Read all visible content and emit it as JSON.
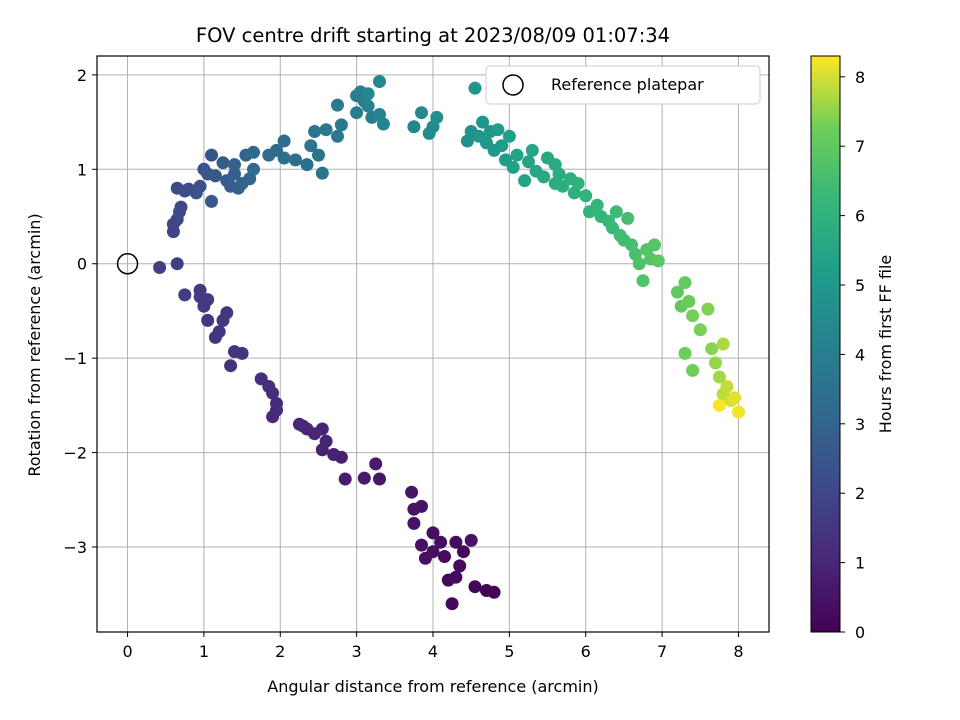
{
  "chart_data": {
    "type": "scatter",
    "title": "FOV centre drift starting at 2023/08/09 01:07:34",
    "xlabel": "Angular distance from reference (arcmin)",
    "ylabel": "Rotation from reference (arcmin)",
    "xlim": [
      -0.4,
      8.4
    ],
    "ylim": [
      -3.9,
      2.2
    ],
    "xticks": [
      0,
      1,
      2,
      3,
      4,
      5,
      6,
      7,
      8
    ],
    "yticks": [
      -3,
      -2,
      -1,
      0,
      1,
      2
    ],
    "xtick_labels": [
      "0",
      "1",
      "2",
      "3",
      "4",
      "5",
      "6",
      "7",
      "8"
    ],
    "ytick_labels": [
      "−3",
      "−2",
      "−1",
      "0",
      "1",
      "2"
    ],
    "grid": true,
    "legend": {
      "position": "top-right",
      "label": "Reference platepar",
      "marker": "open-circle"
    },
    "colorbar": {
      "label": "Hours from first FF file",
      "colormap": "viridis",
      "range": [
        0,
        8.3
      ],
      "ticks": [
        0,
        1,
        2,
        3,
        4,
        5,
        6,
        7,
        8
      ],
      "tick_labels": [
        "0",
        "1",
        "2",
        "3",
        "4",
        "5",
        "6",
        "7",
        "8"
      ]
    },
    "reference_point": {
      "x": 0,
      "y": 0
    },
    "points_xyt": [
      [
        4.8,
        -3.48,
        0.05
      ],
      [
        4.7,
        -3.46,
        0.08
      ],
      [
        4.55,
        -3.42,
        0.12
      ],
      [
        4.25,
        -3.6,
        0.15
      ],
      [
        4.3,
        -3.32,
        0.18
      ],
      [
        4.2,
        -3.35,
        0.2
      ],
      [
        4.35,
        -3.2,
        0.22
      ],
      [
        4.4,
        -3.05,
        0.25
      ],
      [
        4.15,
        -3.1,
        0.28
      ],
      [
        4.3,
        -2.95,
        0.3
      ],
      [
        4.1,
        -2.95,
        0.33
      ],
      [
        4.0,
        -2.85,
        0.36
      ],
      [
        4.0,
        -3.05,
        0.38
      ],
      [
        3.9,
        -3.12,
        0.4
      ],
      [
        3.85,
        -2.98,
        0.42
      ],
      [
        4.5,
        -2.93,
        0.44
      ],
      [
        3.75,
        -2.75,
        0.48
      ],
      [
        3.85,
        -2.57,
        0.5
      ],
      [
        3.75,
        -2.6,
        0.52
      ],
      [
        3.72,
        -2.42,
        0.55
      ],
      [
        3.3,
        -2.28,
        0.62
      ],
      [
        3.1,
        -2.27,
        0.68
      ],
      [
        3.25,
        -2.12,
        0.72
      ],
      [
        2.85,
        -2.28,
        0.78
      ],
      [
        2.8,
        -2.05,
        0.82
      ],
      [
        2.7,
        -2.02,
        0.86
      ],
      [
        2.55,
        -1.97,
        0.9
      ],
      [
        2.6,
        -1.88,
        0.92
      ],
      [
        2.45,
        -1.8,
        0.95
      ],
      [
        2.55,
        -1.75,
        0.98
      ],
      [
        2.35,
        -1.75,
        1.0
      ],
      [
        2.3,
        -1.72,
        1.02
      ],
      [
        2.25,
        -1.7,
        1.04
      ],
      [
        1.9,
        -1.62,
        1.1
      ],
      [
        1.95,
        -1.55,
        1.13
      ],
      [
        1.95,
        -1.48,
        1.16
      ],
      [
        1.9,
        -1.37,
        1.2
      ],
      [
        1.85,
        -1.3,
        1.23
      ],
      [
        1.75,
        -1.22,
        1.27
      ],
      [
        1.35,
        -1.08,
        1.33
      ],
      [
        1.5,
        -0.95,
        1.37
      ],
      [
        1.4,
        -0.93,
        1.4
      ],
      [
        1.15,
        -0.78,
        1.45
      ],
      [
        1.2,
        -0.72,
        1.48
      ],
      [
        1.05,
        -0.6,
        1.5
      ],
      [
        1.25,
        -0.6,
        1.52
      ],
      [
        1.3,
        -0.52,
        1.55
      ],
      [
        1.0,
        -0.45,
        1.58
      ],
      [
        1.05,
        -0.38,
        1.6
      ],
      [
        0.95,
        -0.35,
        1.63
      ],
      [
        0.95,
        -0.28,
        1.65
      ],
      [
        0.75,
        -0.33,
        1.68
      ],
      [
        0.65,
        0.0,
        1.75
      ],
      [
        0.42,
        -0.04,
        1.8
      ],
      [
        0.6,
        0.34,
        1.9
      ],
      [
        0.6,
        0.42,
        1.95
      ],
      [
        0.65,
        0.47,
        2.0
      ],
      [
        0.7,
        0.6,
        2.05
      ],
      [
        0.68,
        0.55,
        2.1
      ],
      [
        0.65,
        0.8,
        2.15
      ],
      [
        0.75,
        0.77,
        2.2
      ],
      [
        0.8,
        0.79,
        2.25
      ],
      [
        0.95,
        0.82,
        2.3
      ],
      [
        0.9,
        0.75,
        2.35
      ],
      [
        1.0,
        1.0,
        2.4
      ],
      [
        1.1,
        1.15,
        2.45
      ],
      [
        1.05,
        0.95,
        2.5
      ],
      [
        1.15,
        0.93,
        2.55
      ],
      [
        1.1,
        0.66,
        2.6
      ],
      [
        1.25,
        1.07,
        2.65
      ],
      [
        1.3,
        0.88,
        2.7
      ],
      [
        1.35,
        0.82,
        2.75
      ],
      [
        1.45,
        0.8,
        2.8
      ],
      [
        1.4,
        0.95,
        2.85
      ],
      [
        1.4,
        1.05,
        2.9
      ],
      [
        1.55,
        1.15,
        2.95
      ],
      [
        1.5,
        0.85,
        3.0
      ],
      [
        1.6,
        0.9,
        3.05
      ],
      [
        1.65,
        1.0,
        3.1
      ],
      [
        1.65,
        1.18,
        3.15
      ],
      [
        1.85,
        1.15,
        3.2
      ],
      [
        1.95,
        1.2,
        3.25
      ],
      [
        2.05,
        1.3,
        3.3
      ],
      [
        2.05,
        1.12,
        3.35
      ],
      [
        2.2,
        1.1,
        3.4
      ],
      [
        2.35,
        1.05,
        3.45
      ],
      [
        2.4,
        1.25,
        3.5
      ],
      [
        2.5,
        1.15,
        3.55
      ],
      [
        2.55,
        0.96,
        3.6
      ],
      [
        2.45,
        1.4,
        3.65
      ],
      [
        2.6,
        1.42,
        3.7
      ],
      [
        2.75,
        1.35,
        3.75
      ],
      [
        2.8,
        1.47,
        3.8
      ],
      [
        2.75,
        1.68,
        3.85
      ],
      [
        3.0,
        1.6,
        3.9
      ],
      [
        3.0,
        1.78,
        3.95
      ],
      [
        3.1,
        1.72,
        4.0
      ],
      [
        3.2,
        1.55,
        4.05
      ],
      [
        3.05,
        1.82,
        4.1
      ],
      [
        3.15,
        1.67,
        4.15
      ],
      [
        3.3,
        1.58,
        4.2
      ],
      [
        3.35,
        1.48,
        4.25
      ],
      [
        3.3,
        1.93,
        4.3
      ],
      [
        3.15,
        1.8,
        4.35
      ],
      [
        3.75,
        1.45,
        4.4
      ],
      [
        3.85,
        1.6,
        4.45
      ],
      [
        3.95,
        1.38,
        4.5
      ],
      [
        4.0,
        1.45,
        4.55
      ],
      [
        4.05,
        1.55,
        4.6
      ],
      [
        4.45,
        1.3,
        4.7
      ],
      [
        4.5,
        1.4,
        4.75
      ],
      [
        4.55,
        1.86,
        4.8
      ],
      [
        4.6,
        1.35,
        4.85
      ],
      [
        4.65,
        1.5,
        4.9
      ],
      [
        4.7,
        1.28,
        4.95
      ],
      [
        4.75,
        1.4,
        5.0
      ],
      [
        4.8,
        1.2,
        5.05
      ],
      [
        4.85,
        1.42,
        5.1
      ],
      [
        4.9,
        1.25,
        5.15
      ],
      [
        4.95,
        1.1,
        5.2
      ],
      [
        5.0,
        1.35,
        5.25
      ],
      [
        5.05,
        1.02,
        5.3
      ],
      [
        5.1,
        1.15,
        5.35
      ],
      [
        5.2,
        0.88,
        5.4
      ],
      [
        5.25,
        1.08,
        5.45
      ],
      [
        5.3,
        1.2,
        5.5
      ],
      [
        5.35,
        0.98,
        5.55
      ],
      [
        5.45,
        0.92,
        5.6
      ],
      [
        5.5,
        1.12,
        5.65
      ],
      [
        5.6,
        1.05,
        5.7
      ],
      [
        5.65,
        0.95,
        5.75
      ],
      [
        5.6,
        0.85,
        5.8
      ],
      [
        5.7,
        0.82,
        5.85
      ],
      [
        5.8,
        0.9,
        5.9
      ],
      [
        5.85,
        0.75,
        5.95
      ],
      [
        5.9,
        0.85,
        6.0
      ],
      [
        6.0,
        0.72,
        6.05
      ],
      [
        6.05,
        0.55,
        6.1
      ],
      [
        6.15,
        0.62,
        6.15
      ],
      [
        6.2,
        0.5,
        6.2
      ],
      [
        6.3,
        0.45,
        6.25
      ],
      [
        6.35,
        0.38,
        6.3
      ],
      [
        6.4,
        0.55,
        6.35
      ],
      [
        6.45,
        0.3,
        6.4
      ],
      [
        6.5,
        0.25,
        6.45
      ],
      [
        6.55,
        0.48,
        6.5
      ],
      [
        6.6,
        0.2,
        6.55
      ],
      [
        6.65,
        0.1,
        6.6
      ],
      [
        6.7,
        0.0,
        6.65
      ],
      [
        6.75,
        -0.18,
        6.7
      ],
      [
        6.8,
        0.15,
        6.75
      ],
      [
        6.85,
        0.05,
        6.8
      ],
      [
        6.9,
        0.2,
        6.85
      ],
      [
        6.95,
        0.03,
        6.9
      ],
      [
        7.2,
        -0.3,
        7.0
      ],
      [
        7.25,
        -0.45,
        7.05
      ],
      [
        7.3,
        -0.2,
        7.1
      ],
      [
        7.35,
        -0.4,
        7.15
      ],
      [
        7.3,
        -0.95,
        7.2
      ],
      [
        7.4,
        -1.13,
        7.25
      ],
      [
        7.4,
        -0.55,
        7.3
      ],
      [
        7.5,
        -0.7,
        7.35
      ],
      [
        7.6,
        -0.48,
        7.4
      ],
      [
        7.65,
        -0.9,
        7.45
      ],
      [
        7.7,
        -1.05,
        7.55
      ],
      [
        7.75,
        -1.2,
        7.65
      ],
      [
        7.8,
        -0.85,
        7.7
      ],
      [
        7.8,
        -1.38,
        7.8
      ],
      [
        7.85,
        -1.3,
        7.9
      ],
      [
        7.9,
        -1.45,
        8.0
      ],
      [
        7.95,
        -1.42,
        8.1
      ],
      [
        8.0,
        -1.57,
        8.2
      ],
      [
        7.75,
        -1.5,
        8.25
      ]
    ]
  }
}
